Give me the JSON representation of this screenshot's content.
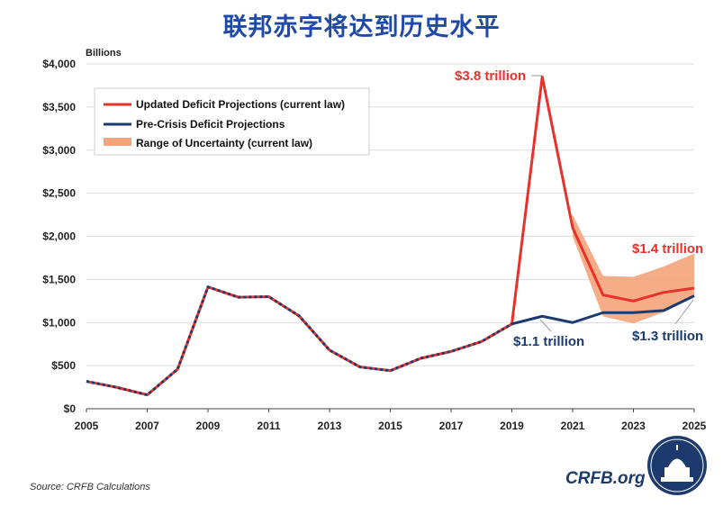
{
  "title": "联邦赤字将达到历史水平",
  "source": "Source: CRFB Calculations",
  "logo": {
    "text": "CRFB.org",
    "icon": "capitol-dome-seal-icon"
  },
  "colors": {
    "updated": "#e8312a",
    "precrisis": "#1c3a6e",
    "range": "#f4a47a",
    "title": "#1f4aa8"
  },
  "chart_data": {
    "type": "line",
    "ylabel": "Billions",
    "xlim": [
      2005,
      2025
    ],
    "ylim": [
      0,
      4000
    ],
    "x_ticks": [
      "2005",
      "2007",
      "2009",
      "2011",
      "2013",
      "2015",
      "2017",
      "2019",
      "2021",
      "2023",
      "2025"
    ],
    "y_ticks": [
      "$0",
      "$500",
      "$1,000",
      "$1,500",
      "$2,000",
      "$2,500",
      "$3,000",
      "$3,500",
      "$4,000"
    ],
    "grid": "horizontal",
    "legend_position": "top-left",
    "series": [
      {
        "name": "Updated Deficit Projections (current law)",
        "x": [
          2005,
          2006,
          2007,
          2008,
          2009,
          2010,
          2011,
          2012,
          2013,
          2014,
          2015,
          2016,
          2017,
          2018,
          2019,
          2020,
          2021,
          2022,
          2023,
          2024,
          2025
        ],
        "values": [
          318,
          248,
          161,
          459,
          1413,
          1294,
          1300,
          1077,
          680,
          485,
          442,
          585,
          665,
          779,
          984,
          3850,
          2100,
          1320,
          1250,
          1350,
          1400
        ]
      },
      {
        "name": "Pre-Crisis Deficit Projections",
        "x": [
          2005,
          2006,
          2007,
          2008,
          2009,
          2010,
          2011,
          2012,
          2013,
          2014,
          2015,
          2016,
          2017,
          2018,
          2019,
          2020,
          2021,
          2022,
          2023,
          2024,
          2025
        ],
        "values": [
          318,
          248,
          161,
          459,
          1413,
          1294,
          1300,
          1077,
          680,
          485,
          442,
          585,
          665,
          779,
          984,
          1073,
          1000,
          1115,
          1115,
          1140,
          1310
        ]
      }
    ],
    "range": {
      "name": "Range of Uncertainty (current law)",
      "x": [
        2021,
        2022,
        2023,
        2024,
        2025
      ],
      "upper": [
        2250,
        1540,
        1530,
        1650,
        1800
      ],
      "lower": [
        2000,
        1070,
        990,
        1120,
        1300
      ]
    },
    "annotations": [
      {
        "text": "$3.8 trillion",
        "series": "updated"
      },
      {
        "text": "$1.4 trillion",
        "series": "updated"
      },
      {
        "text": "$1.1 trillion",
        "series": "precrisis"
      },
      {
        "text": "$1.3 trillion",
        "series": "precrisis"
      }
    ]
  }
}
